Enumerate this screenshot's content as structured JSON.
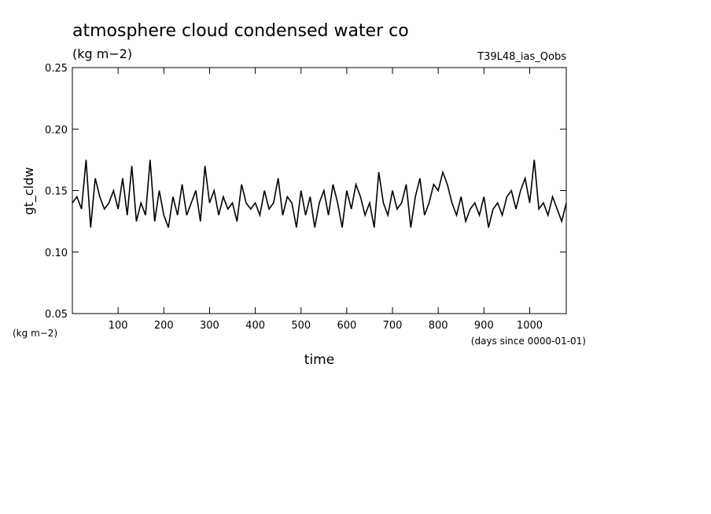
{
  "chart_data": {
    "type": "line",
    "title": "atmosphere cloud condensed water co",
    "subtitle": "(kg m−2)",
    "annotation": "T39L48_ias_Qobs",
    "y_label": "gt_cldw",
    "y_unit": "(kg m−2)",
    "x_label": "time",
    "x_unit": "(days since 0000-01-01)",
    "color": "#000000",
    "xlim": [
      0,
      1080
    ],
    "xticks": [
      100,
      200,
      300,
      400,
      500,
      600,
      700,
      800,
      900,
      1000
    ],
    "ylim": [
      0.05,
      0.25
    ],
    "yticks": [
      0.05,
      {
        "value": 0.1,
        "label": "0.10"
      },
      0.15,
      {
        "value": 0.2,
        "label": "0.20"
      },
      0.25
    ],
    "x": [
      0,
      10,
      20,
      30,
      40,
      50,
      60,
      70,
      80,
      90,
      100,
      110,
      120,
      130,
      140,
      150,
      160,
      170,
      180,
      190,
      200,
      210,
      220,
      230,
      240,
      250,
      260,
      270,
      280,
      290,
      300,
      310,
      320,
      330,
      340,
      350,
      360,
      370,
      380,
      390,
      400,
      410,
      420,
      430,
      440,
      450,
      460,
      470,
      480,
      490,
      500,
      510,
      520,
      530,
      540,
      550,
      560,
      570,
      580,
      590,
      600,
      610,
      620,
      630,
      640,
      650,
      660,
      670,
      680,
      690,
      700,
      710,
      720,
      730,
      740,
      750,
      760,
      770,
      780,
      790,
      800,
      810,
      820,
      830,
      840,
      850,
      860,
      870,
      880,
      890,
      900,
      910,
      920,
      930,
      940,
      950,
      960,
      970,
      980,
      990,
      1000,
      1010,
      1020,
      1030,
      1040,
      1050,
      1060,
      1070,
      1080
    ],
    "values": [
      0.14,
      0.145,
      0.135,
      0.175,
      0.12,
      0.16,
      0.145,
      0.135,
      0.14,
      0.15,
      0.135,
      0.16,
      0.13,
      0.17,
      0.125,
      0.14,
      0.13,
      0.175,
      0.125,
      0.15,
      0.13,
      0.12,
      0.145,
      0.13,
      0.155,
      0.13,
      0.14,
      0.15,
      0.125,
      0.17,
      0.14,
      0.15,
      0.13,
      0.145,
      0.135,
      0.14,
      0.125,
      0.155,
      0.14,
      0.135,
      0.14,
      0.13,
      0.15,
      0.135,
      0.14,
      0.16,
      0.13,
      0.145,
      0.14,
      0.12,
      0.15,
      0.13,
      0.145,
      0.12,
      0.14,
      0.15,
      0.13,
      0.155,
      0.14,
      0.12,
      0.15,
      0.135,
      0.155,
      0.145,
      0.13,
      0.14,
      0.12,
      0.165,
      0.14,
      0.13,
      0.15,
      0.135,
      0.14,
      0.155,
      0.12,
      0.145,
      0.16,
      0.13,
      0.14,
      0.155,
      0.15,
      0.165,
      0.155,
      0.14,
      0.13,
      0.145,
      0.125,
      0.135,
      0.14,
      0.13,
      0.145,
      0.12,
      0.135,
      0.14,
      0.13,
      0.145,
      0.15,
      0.135,
      0.15,
      0.16,
      0.14,
      0.175,
      0.135,
      0.14,
      0.13,
      0.145,
      0.135,
      0.125,
      0.14
    ]
  }
}
